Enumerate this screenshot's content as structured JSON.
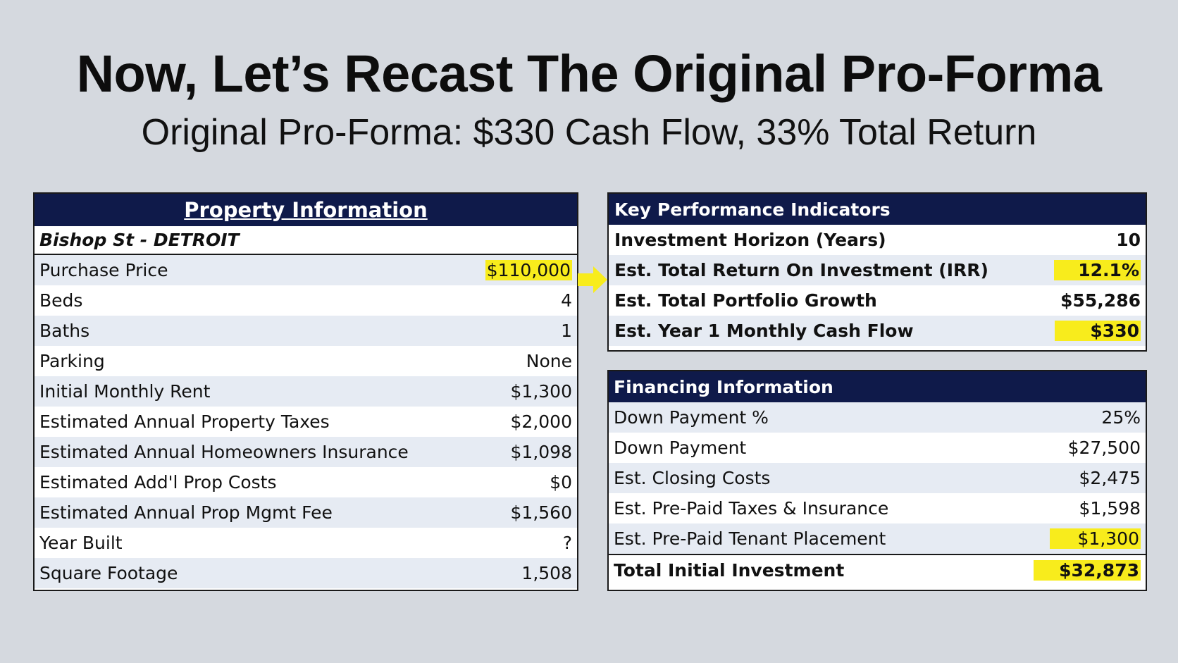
{
  "title": "Now, Let’s Recast The Original Pro-Forma",
  "subtitle": "Original Pro-Forma: $330 Cash Flow, 33% Total Return",
  "property": {
    "header": "Property Information",
    "subheader": "Bishop St - DETROIT",
    "rows": [
      {
        "label": "Purchase Price",
        "value": "$110,000"
      },
      {
        "label": "Beds",
        "value": "4"
      },
      {
        "label": "Baths",
        "value": "1"
      },
      {
        "label": "Parking",
        "value": "None"
      },
      {
        "label": "Initial Monthly Rent",
        "value": "$1,300"
      },
      {
        "label": "Estimated Annual Property Taxes",
        "value": "$2,000"
      },
      {
        "label": "Estimated Annual Homeowners Insurance",
        "value": "$1,098"
      },
      {
        "label": "Estimated Add'l Prop Costs",
        "value": "$0"
      },
      {
        "label": "Estimated Annual Prop Mgmt Fee",
        "value": "$1,560"
      },
      {
        "label": "Year Built",
        "value": "?"
      },
      {
        "label": "Square Footage",
        "value": "1,508"
      }
    ]
  },
  "kpi": {
    "header": "Key Performance Indicators",
    "rows": [
      {
        "label": "Investment Horizon (Years)",
        "value": "10"
      },
      {
        "label": "Est. Total Return On Investment (IRR)",
        "value": "12.1%"
      },
      {
        "label": "Est. Total Portfolio Growth",
        "value": "$55,286"
      },
      {
        "label": "Est. Year 1 Monthly Cash Flow",
        "value": "$330"
      }
    ]
  },
  "financing": {
    "header": "Financing Information",
    "rows": [
      {
        "label": "Down Payment %",
        "value": "25%"
      },
      {
        "label": "Down Payment",
        "value": "$27,500"
      },
      {
        "label": "Est. Closing Costs",
        "value": "$2,475"
      },
      {
        "label": "Est. Pre-Paid Taxes & Insurance",
        "value": "$1,598"
      },
      {
        "label": "Est. Pre-Paid Tenant Placement",
        "value": "$1,300"
      }
    ],
    "total": {
      "label": "Total Initial Investment",
      "value": "$32,873"
    }
  },
  "colors": {
    "header_bg": "#0f1a4a",
    "highlight": "#f8ec1c",
    "alt_row": "#e6ebf3"
  },
  "icons": {
    "arrow": "arrow-right-icon"
  }
}
